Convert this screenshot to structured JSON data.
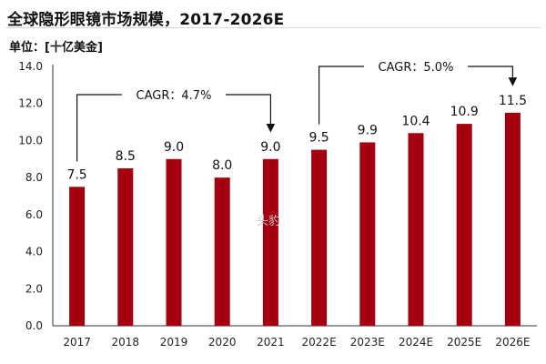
{
  "title": "全球隐形眼镜市场规模，2017-2026E",
  "unit_label": "单位：[十亿美金]",
  "watermark": "头豹",
  "colors": {
    "bar": "#a50010",
    "axis": "#333333",
    "text": "#111111"
  },
  "annotations": [
    {
      "label": "CAGR：4.7%",
      "from": "2017",
      "to": "2021"
    },
    {
      "label": "CAGR：5.0%",
      "from": "2022E",
      "to": "2026E"
    }
  ],
  "chart_data": {
    "type": "bar",
    "title": "全球隐形眼镜市场规模，2017-2026E",
    "xlabel": "",
    "ylabel": "单位：[十亿美金]",
    "categories": [
      "2017",
      "2018",
      "2019",
      "2020",
      "2021",
      "2022E",
      "2023E",
      "2024E",
      "2025E",
      "2026E"
    ],
    "values": [
      7.5,
      8.5,
      9.0,
      8.0,
      9.0,
      9.5,
      9.9,
      10.4,
      10.9,
      11.5
    ],
    "value_labels": [
      "7.5",
      "8.5",
      "9.0",
      "8.0",
      "9.0",
      "9.5",
      "9.9",
      "10.4",
      "10.9",
      "11.5"
    ],
    "ylim": [
      0,
      14
    ],
    "yticks": [
      "0.0",
      "2.0",
      "4.0",
      "6.0",
      "8.0",
      "10.0",
      "12.0",
      "14.0"
    ],
    "grid": false,
    "legend": "none"
  }
}
